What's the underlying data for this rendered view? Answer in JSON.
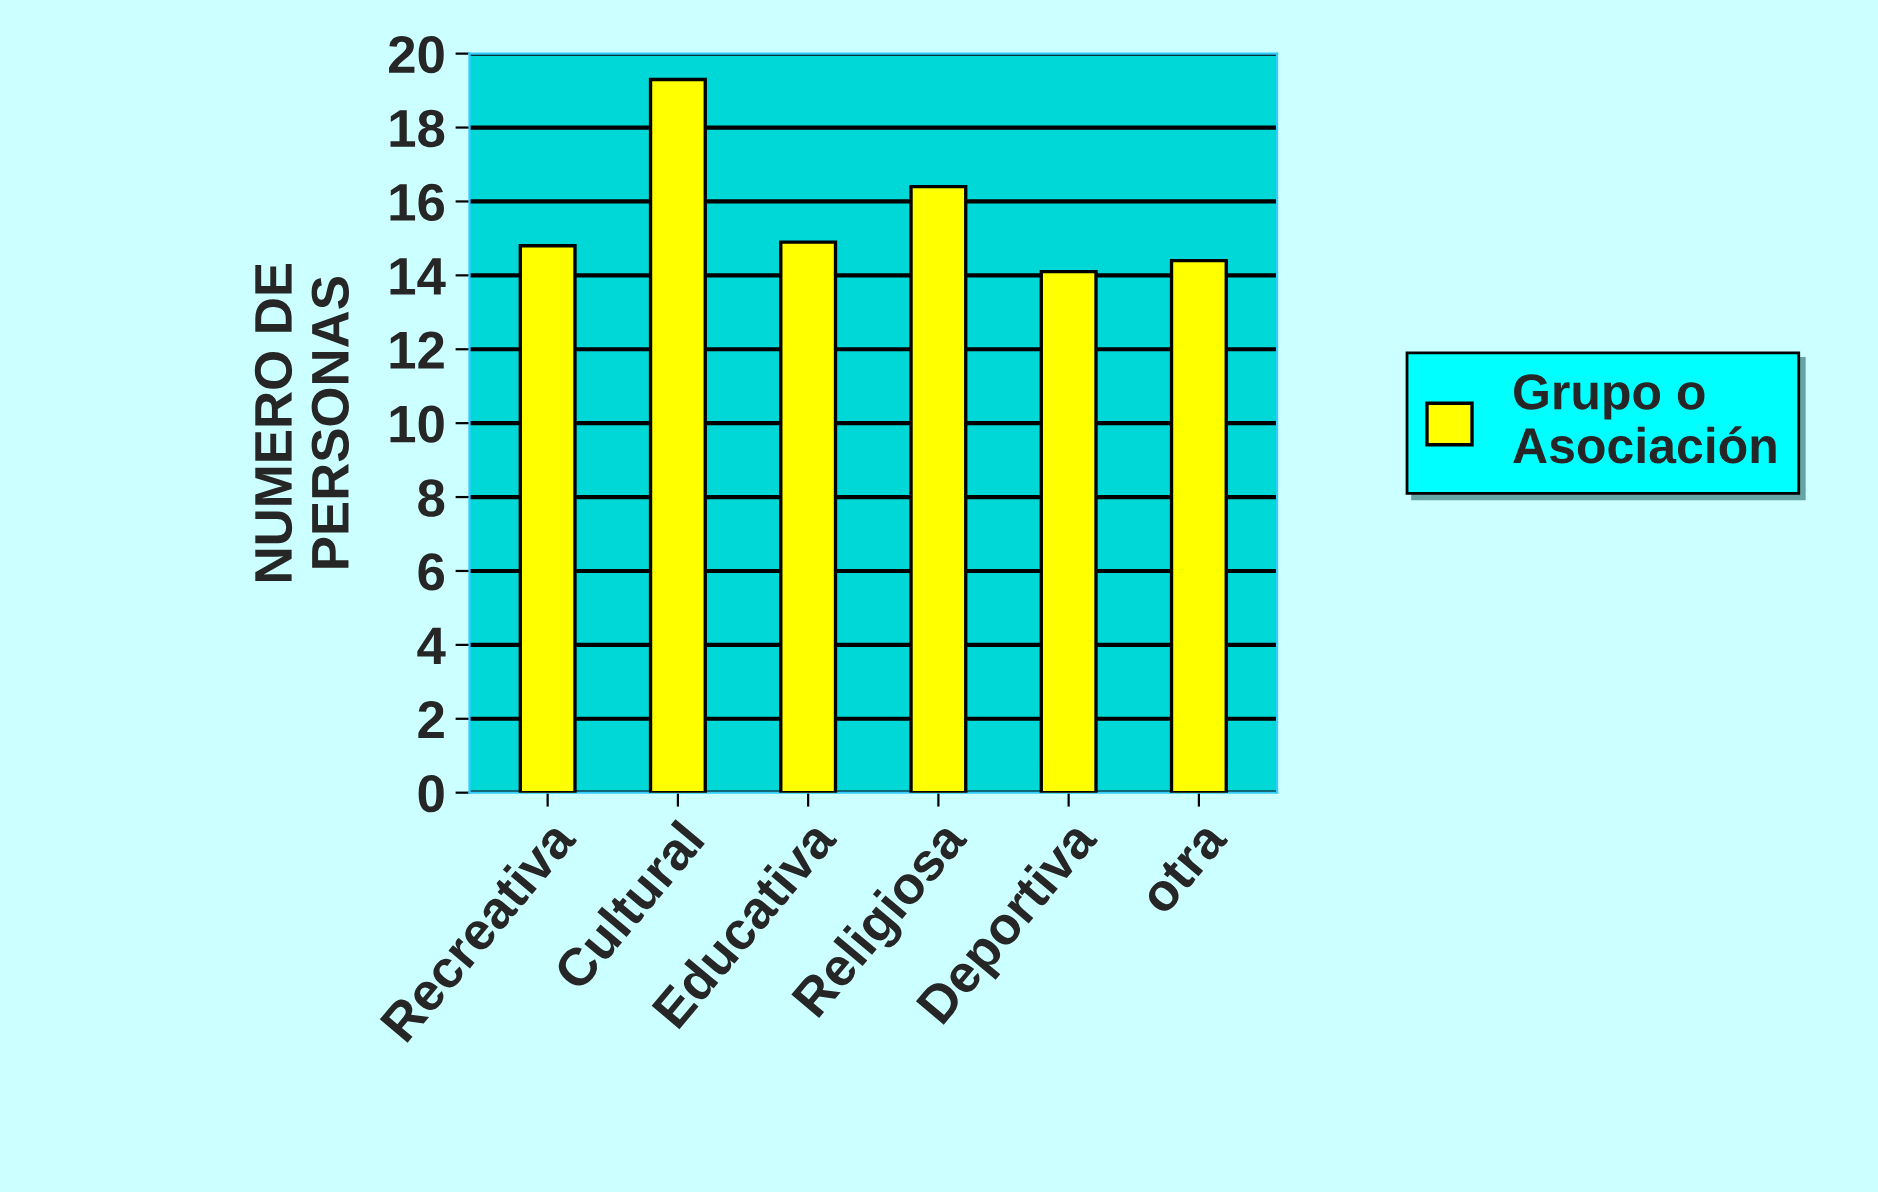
{
  "chart_data": {
    "type": "bar",
    "ylabel": "NUMERO DE\nPERSONAS",
    "categories": [
      "Recreativa",
      "Cultural",
      "Educativa",
      "Religiosa",
      "Deportiva",
      "otra"
    ],
    "series": [
      {
        "name": "Grupo o\nAsociación",
        "color": "#ffff00",
        "values": [
          14.8,
          19.3,
          14.9,
          16.4,
          14.1,
          14.4
        ]
      }
    ],
    "ylim": [
      0,
      20
    ],
    "yticks": [
      0,
      2,
      4,
      6,
      8,
      10,
      12,
      14,
      16,
      18,
      20
    ],
    "grid": "y",
    "legend": "right"
  }
}
